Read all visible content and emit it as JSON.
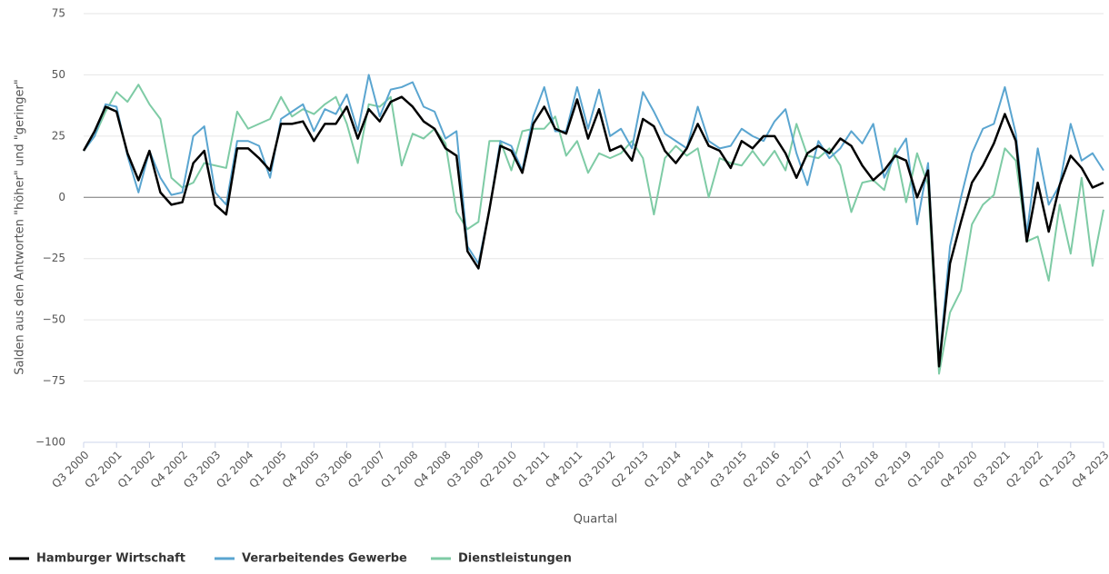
{
  "chart_data": {
    "type": "line",
    "y_label": "Salden aus den Antworten \"höher\" und \"geringer\"",
    "x_label": "Quartal",
    "categories": [
      "Q3 2000",
      null,
      null,
      "Q2 2001",
      null,
      null,
      "Q1 2002",
      null,
      null,
      "Q4 2002",
      null,
      null,
      "Q3 2003",
      null,
      null,
      "Q2 2004",
      null,
      null,
      "Q1 2005",
      null,
      null,
      "Q4 2005",
      null,
      null,
      "Q3 2006",
      null,
      null,
      "Q2 2007",
      null,
      null,
      "Q1 2008",
      null,
      null,
      "Q4 2008",
      null,
      null,
      "Q3 2009",
      null,
      null,
      "Q2 2010",
      null,
      null,
      "Q1 2011",
      null,
      null,
      "Q4 2011",
      null,
      null,
      "Q3 2012",
      null,
      null,
      "Q2 2013",
      null,
      null,
      "Q1 2014",
      null,
      null,
      "Q4 2014",
      null,
      null,
      "Q3 2015",
      null,
      null,
      "Q2 2016",
      null,
      null,
      "Q1 2017",
      null,
      null,
      "Q4 2017",
      null,
      null,
      "Q3 2018",
      null,
      null,
      "Q2 2019",
      null,
      null,
      "Q1 2020",
      null,
      null,
      "Q4 2020",
      null,
      null,
      "Q3 2021",
      null,
      null,
      "Q2 2022",
      null,
      null,
      "Q1 2023",
      null,
      null,
      "Q4 2023"
    ],
    "series": [
      {
        "name": "Hamburger Wirtschaft",
        "color": "#000000",
        "values": [
          19,
          27,
          37,
          35,
          18,
          7,
          19,
          2,
          -3,
          -2,
          14,
          19,
          -3,
          -7,
          20,
          20,
          16,
          11,
          30,
          30,
          31,
          23,
          30,
          30,
          37,
          24,
          36,
          31,
          39,
          41,
          37,
          31,
          28,
          20,
          17,
          -22,
          -29,
          -5,
          21,
          19,
          10,
          30,
          37,
          28,
          26,
          40,
          24,
          36,
          19,
          21,
          15,
          32,
          29,
          19,
          14,
          20,
          30,
          21,
          19,
          12,
          23,
          20,
          25,
          25,
          18,
          8,
          18,
          21,
          18,
          24,
          21,
          13,
          7,
          11,
          17,
          15,
          0,
          11,
          -69,
          -27,
          -10,
          6,
          13,
          22,
          34,
          23,
          -18,
          6,
          -14,
          5,
          17,
          12,
          4,
          6
        ]
      },
      {
        "name": "Verarbeitendes Gewerbe",
        "color": "#5aa5d0",
        "values": [
          19,
          25,
          38,
          37,
          17,
          2,
          19,
          8,
          1,
          2,
          25,
          29,
          2,
          -3,
          23,
          23,
          21,
          8,
          32,
          35,
          38,
          27,
          36,
          34,
          42,
          27,
          50,
          33,
          44,
          45,
          47,
          37,
          35,
          24,
          27,
          -20,
          -27,
          -5,
          23,
          21,
          11,
          33,
          45,
          27,
          27,
          45,
          28,
          44,
          25,
          28,
          20,
          43,
          35,
          26,
          23,
          20,
          37,
          23,
          20,
          21,
          28,
          25,
          23,
          31,
          36,
          18,
          5,
          23,
          16,
          20,
          27,
          22,
          30,
          8,
          17,
          24,
          -11,
          14,
          -68,
          -20,
          0,
          18,
          28,
          30,
          45,
          26,
          -15,
          20,
          -3,
          5,
          30,
          15,
          18,
          11
        ]
      },
      {
        "name": "Dienstleistungen",
        "color": "#7ecba5",
        "values": [
          19,
          25,
          35,
          43,
          39,
          46,
          38,
          32,
          8,
          4,
          6,
          14,
          13,
          12,
          35,
          28,
          30,
          32,
          41,
          33,
          36,
          34,
          38,
          41,
          30,
          14,
          38,
          37,
          41,
          13,
          26,
          24,
          28,
          22,
          -6,
          -13,
          -10,
          23,
          23,
          11,
          27,
          28,
          28,
          33,
          17,
          23,
          10,
          18,
          16,
          18,
          23,
          16,
          -7,
          16,
          21,
          17,
          20,
          0,
          16,
          14,
          13,
          19,
          13,
          19,
          11,
          30,
          17,
          16,
          20,
          13,
          -6,
          6,
          7,
          3,
          20,
          -2,
          18,
          5,
          -72,
          -47,
          -38,
          -11,
          -3,
          1,
          20,
          15,
          -18,
          -16,
          -34,
          -3,
          -23,
          8,
          -28,
          -5
        ]
      }
    ],
    "ylim": [
      -100,
      75
    ],
    "yticks": [
      {
        "value": -100,
        "label": "−100"
      },
      {
        "value": -75,
        "label": "−75"
      },
      {
        "value": -50,
        "label": "−50"
      },
      {
        "value": -25,
        "label": "−25"
      },
      0,
      25,
      50,
      75
    ],
    "grid": true
  }
}
